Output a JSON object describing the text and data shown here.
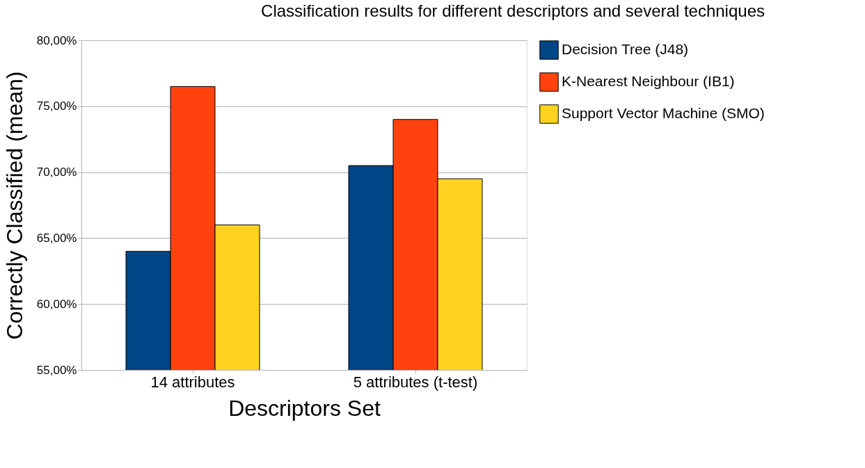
{
  "chart_data": {
    "type": "bar",
    "title": "Classification results for different descriptors and several techniques",
    "xlabel": "Descriptors Set",
    "ylabel": "Correctly Classified (mean)",
    "categories": [
      "14 attributes",
      "5 attributes (t-test)"
    ],
    "series": [
      {
        "name": "Decision Tree (J48)",
        "color": "#004586",
        "values": [
          64.0,
          70.5
        ]
      },
      {
        "name": "K-Nearest Neighbour (IB1)",
        "color": "#ff420e",
        "values": [
          76.5,
          74.0
        ]
      },
      {
        "name": "Support Vector Machine (SMO)",
        "color": "#ffd320",
        "values": [
          66.0,
          69.5
        ]
      }
    ],
    "ylim": [
      55,
      80
    ],
    "yticks": [
      {
        "value": 55,
        "label": "55,00%"
      },
      {
        "value": 60,
        "label": "60,00%"
      },
      {
        "value": 65,
        "label": "65,00%"
      },
      {
        "value": 70,
        "label": "70,00%"
      },
      {
        "value": 75,
        "label": "75,00%"
      },
      {
        "value": 80,
        "label": "80,00%"
      }
    ],
    "grid": "y",
    "legend": "right"
  }
}
